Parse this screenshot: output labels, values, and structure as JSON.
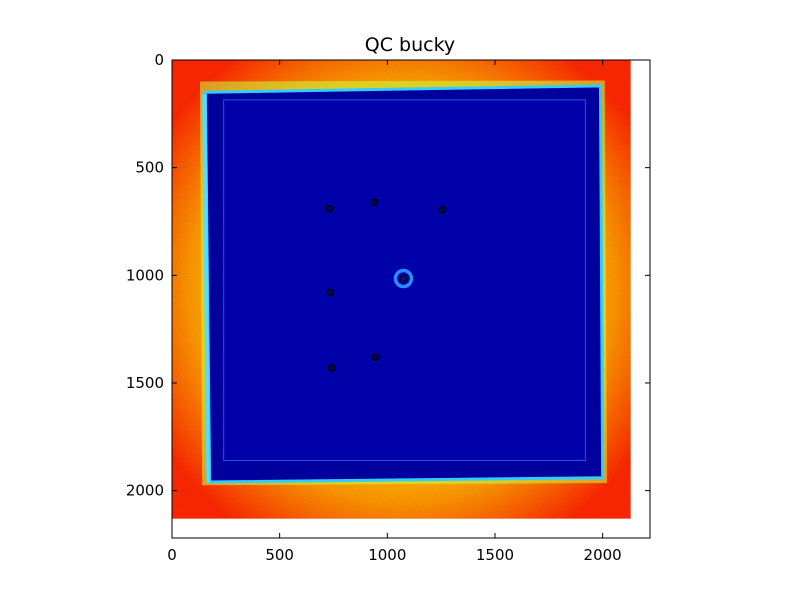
{
  "chart_data": {
    "type": "heatmap",
    "title": "QC bucky",
    "colormap": "jet",
    "x_ticks": [
      0,
      500,
      1000,
      1500,
      2000
    ],
    "y_ticks": [
      0,
      500,
      1000,
      1500,
      2000
    ],
    "xlim": [
      0,
      2220
    ],
    "ylim": [
      2220,
      0
    ],
    "image_extent": [
      0,
      2130,
      0,
      2130
    ],
    "grid": false,
    "colors": {
      "background_high": "#ff3300",
      "edge_mid": "#ffee00",
      "panel_low": "#00009c",
      "panel_edge": "#33ccff"
    }
  }
}
